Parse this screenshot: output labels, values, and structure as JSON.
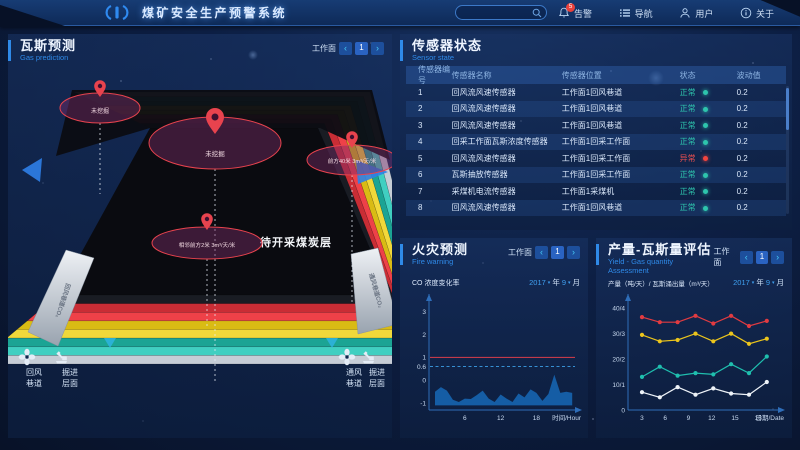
{
  "ui": {
    "prev": "‹",
    "next": "›",
    "caret": "▾",
    "year_suffix": "年",
    "month_suffix": "月"
  },
  "header": {
    "title": "煤矿安全生产预警系统",
    "search_value": "",
    "menu": [
      {
        "label": "告警",
        "icon": "bell",
        "badge": "5"
      },
      {
        "label": "导航",
        "icon": "list"
      },
      {
        "label": "用户",
        "icon": "user"
      },
      {
        "label": "关于",
        "icon": "info"
      }
    ]
  },
  "gas_panel": {
    "title": "瓦斯预测",
    "subtitle": "Gas prediction",
    "pager": {
      "label": "工作面",
      "page": "1"
    },
    "mine": {
      "surface_label": "待开采煤炭层",
      "ramp_left": "回风巷道CO₂",
      "ramp_right": "通风巷道CO₂",
      "callouts": [
        {
          "label": "未挖掘"
        },
        {
          "label": "未挖掘"
        },
        {
          "label": "前方40米 3m³/天/米"
        },
        {
          "label": "相邻前方2米 3m³/天/米"
        }
      ],
      "legend": [
        {
          "line1": "回风",
          "line2": "巷道",
          "icon": "fan"
        },
        {
          "line1": "掘进",
          "line2": "层面",
          "icon": "digger"
        },
        {
          "line1": "通风",
          "line2": "巷道",
          "icon": "fan"
        },
        {
          "line1": "掘进",
          "line2": "层面",
          "icon": "digger"
        }
      ]
    }
  },
  "sensor_panel": {
    "title": "传感器状态",
    "subtitle": "Sensor state",
    "columns": [
      "传感器编号",
      "传感器名称",
      "传感器位置",
      "状态",
      "波动值"
    ],
    "rows": [
      {
        "no": "1",
        "name": "回风流风速传感器",
        "location": "工作面1回风巷道",
        "status": "正常",
        "ok": true,
        "value": "0.2"
      },
      {
        "no": "2",
        "name": "回风流风速传感器",
        "location": "工作面1回风巷道",
        "status": "正常",
        "ok": true,
        "value": "0.2"
      },
      {
        "no": "3",
        "name": "回风流风速传感器",
        "location": "工作面1回风巷道",
        "status": "正常",
        "ok": true,
        "value": "0.2"
      },
      {
        "no": "4",
        "name": "回采工作面瓦斯浓度传感器",
        "location": "工作面1回采工作面",
        "status": "正常",
        "ok": true,
        "value": "0.2"
      },
      {
        "no": "5",
        "name": "回风流风速传感器",
        "location": "工作面1回采工作面",
        "status": "异常",
        "ok": false,
        "value": "0.2"
      },
      {
        "no": "6",
        "name": "瓦斯抽放传感器",
        "location": "工作面1回采工作面",
        "status": "正常",
        "ok": true,
        "value": "0.2"
      },
      {
        "no": "7",
        "name": "采煤机电流传感器",
        "location": "工作面1采煤机",
        "status": "正常",
        "ok": true,
        "value": "0.2"
      },
      {
        "no": "8",
        "name": "回风流风速传感器",
        "location": "工作面1回风巷道",
        "status": "正常",
        "ok": true,
        "value": "0.2"
      }
    ],
    "status_colors": {
      "normal": "#2ec5ad",
      "abnormal": "#f3453f"
    }
  },
  "fire_panel": {
    "title": "火灾预测",
    "subtitle": "Fire warning",
    "pager": {
      "label": "工作面",
      "page": "1"
    },
    "chart_label": "CO 浓度变化率",
    "date": {
      "year": "2017",
      "month": "9"
    }
  },
  "yield_panel": {
    "title": "产量-瓦斯量评估",
    "subtitle": "Yield - Gas quantity Assessment",
    "pager": {
      "label": "工作面",
      "page": "1"
    },
    "chart_label": "产量（吨/天）/ 瓦斯涌出量（m³/天）",
    "date": {
      "year": "2017",
      "month": "9"
    }
  },
  "chart_data": [
    {
      "id": "fire",
      "type": "area",
      "title": "CO 浓度变化率",
      "xlabel": "时间/Hour",
      "x_range": [
        0,
        24.8
      ],
      "x_ticks": [
        6,
        12,
        18
      ],
      "y_range": [
        -1.3,
        3.6
      ],
      "y_ticks": [
        3,
        2,
        1,
        0.6,
        0,
        -1
      ],
      "red_line": 1,
      "dashed_line": 0.6,
      "baseline": -1.1,
      "x": [
        1,
        2,
        3,
        4,
        5,
        6,
        7,
        8,
        9,
        10,
        11,
        12,
        13,
        14,
        15,
        16,
        17,
        18,
        19,
        20,
        21,
        22,
        23,
        24
      ],
      "values": [
        -0.5,
        -0.3,
        -0.45,
        -0.85,
        -0.95,
        -0.8,
        -0.82,
        -0.65,
        -0.45,
        -0.8,
        -0.95,
        -0.62,
        -0.8,
        -0.95,
        -0.58,
        -0.75,
        -0.4,
        -0.55,
        -0.9,
        -0.6,
        0.25,
        -0.55,
        -0.5,
        -0.55
      ],
      "area_color": "#1663ae",
      "red_color": "#c23a4a",
      "dashed_color": "#3da0e8",
      "axis_color": "#2e6db8"
    },
    {
      "id": "yield",
      "type": "line",
      "title": "产量-瓦斯量评估",
      "xlabel": "日期/Date",
      "x_range": [
        1.2,
        20.8
      ],
      "x_ticks": [
        3,
        6,
        9,
        12,
        15,
        18
      ],
      "y_range": [
        0,
        44
      ],
      "y_ticks": [
        {
          "label": "40/4",
          "v": 40
        },
        {
          "label": "30/3",
          "v": 30
        },
        {
          "label": "20/2",
          "v": 20
        },
        {
          "label": "10/1",
          "v": 10
        },
        {
          "label": "0",
          "v": 0
        }
      ],
      "x": [
        3,
        5.3,
        7.6,
        9.9,
        12.2,
        14.5,
        16.8,
        19.1
      ],
      "series": [
        {
          "name": "red",
          "color": "#e23b41",
          "values": [
            36.5,
            34.5,
            34.5,
            37,
            34,
            37,
            33,
            35
          ]
        },
        {
          "name": "yellow",
          "color": "#ecc51c",
          "values": [
            29.5,
            27,
            27.5,
            30,
            27,
            30,
            26,
            28
          ]
        },
        {
          "name": "teal",
          "color": "#1fbfae",
          "values": [
            13,
            17,
            13.5,
            14.5,
            14,
            18,
            14.5,
            21
          ]
        },
        {
          "name": "white",
          "color": "#eef3f8",
          "values": [
            7,
            5,
            9,
            6,
            8.5,
            6.5,
            6,
            11
          ]
        }
      ],
      "axis_color": "#2e6db8"
    }
  ]
}
